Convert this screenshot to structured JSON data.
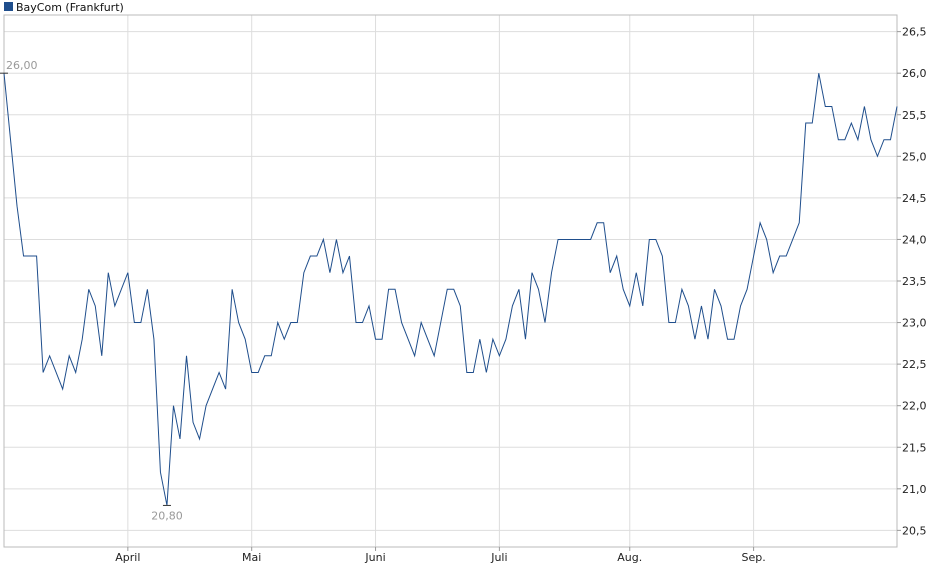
{
  "chart_data": {
    "type": "line",
    "title": "",
    "xlabel": "",
    "ylabel": "",
    "legend": {
      "position": "top-left",
      "entries": [
        "BayCom (Frankfurt)"
      ]
    },
    "ylim": [
      20.3,
      26.7
    ],
    "yticks": [
      20.5,
      21.0,
      21.5,
      22.0,
      22.5,
      23.0,
      23.5,
      24.0,
      24.5,
      25.0,
      25.5,
      26.0,
      26.5
    ],
    "ytick_labels": [
      "20,5",
      "21,0",
      "21,5",
      "22,0",
      "22,5",
      "23,0",
      "23,5",
      "24,0",
      "24,5",
      "25,0",
      "25,5",
      "26,0",
      "26,5"
    ],
    "x_month_labels": [
      "April",
      "Mai",
      "Juni",
      "Juli",
      "Aug.",
      "Sep."
    ],
    "x_month_index": [
      19,
      38,
      57,
      76,
      96,
      115
    ],
    "grid": true,
    "series": [
      {
        "name": "BayCom (Frankfurt)",
        "color": "#1f4e8c",
        "values": [
          26.0,
          25.2,
          24.4,
          23.8,
          23.8,
          23.8,
          22.4,
          22.6,
          22.4,
          22.2,
          22.6,
          22.4,
          22.8,
          23.4,
          23.2,
          22.6,
          23.6,
          23.2,
          23.4,
          23.6,
          23.0,
          23.0,
          23.4,
          22.8,
          21.2,
          20.8,
          22.0,
          21.6,
          22.6,
          21.8,
          21.6,
          22.0,
          22.2,
          22.4,
          22.2,
          23.4,
          23.0,
          22.8,
          22.4,
          22.4,
          22.6,
          22.6,
          23.0,
          22.8,
          23.0,
          23.0,
          23.6,
          23.8,
          23.8,
          24.0,
          23.6,
          24.0,
          23.6,
          23.8,
          23.0,
          23.0,
          23.2,
          22.8,
          22.8,
          23.4,
          23.4,
          23.0,
          22.8,
          22.6,
          23.0,
          22.8,
          22.6,
          23.0,
          23.4,
          23.4,
          23.2,
          22.4,
          22.4,
          22.8,
          22.4,
          22.8,
          22.6,
          22.8,
          23.2,
          23.4,
          22.8,
          23.6,
          23.4,
          23.0,
          23.6,
          24.0,
          24.0,
          24.0,
          24.0,
          24.0,
          24.0,
          24.2,
          24.2,
          23.6,
          23.8,
          23.4,
          23.2,
          23.6,
          23.2,
          24.0,
          24.0,
          23.8,
          23.0,
          23.0,
          23.4,
          23.2,
          22.8,
          23.2,
          22.8,
          23.4,
          23.2,
          22.8,
          22.8,
          23.2,
          23.4,
          23.8,
          24.2,
          24.0,
          23.6,
          23.8,
          23.8,
          24.0,
          24.2,
          25.4,
          25.4,
          26.0,
          25.6,
          25.6,
          25.2,
          25.2,
          25.4,
          25.2,
          25.6,
          25.2,
          25.0,
          25.2,
          25.2,
          25.6
        ]
      }
    ],
    "annotations": [
      {
        "label": "26,00",
        "index": 0,
        "value": 26.0,
        "type": "max"
      },
      {
        "label": "20,80",
        "index": 25,
        "value": 20.8,
        "type": "min"
      }
    ]
  }
}
